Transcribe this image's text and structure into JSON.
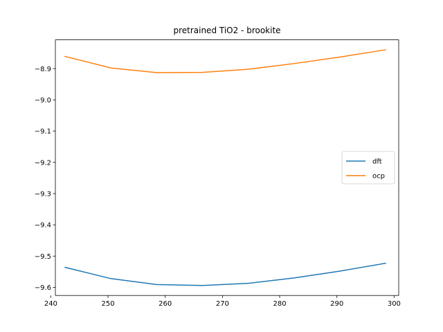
{
  "chart_data": {
    "type": "line",
    "title": "pretrained TiO2 - brookite",
    "xlabel": "",
    "ylabel": "",
    "x": [
      242.5,
      250.5,
      258.5,
      266.5,
      274.5,
      282.5,
      290.5,
      298.5
    ],
    "series": [
      {
        "name": "dft",
        "color": "#1f77b4",
        "values": [
          -9.536,
          -9.572,
          -9.591,
          -9.594,
          -9.587,
          -9.57,
          -9.548,
          -9.523
        ]
      },
      {
        "name": "ocp",
        "color": "#ff7f0e",
        "values": [
          -8.861,
          -8.898,
          -8.913,
          -8.912,
          -8.902,
          -8.884,
          -8.863,
          -8.84
        ]
      }
    ],
    "xlim": [
      240.8,
      300.8
    ],
    "ylim": [
      -9.626,
      -8.808
    ],
    "xticks": [
      240,
      250,
      260,
      270,
      280,
      290,
      300
    ],
    "yticks": [
      -9.6,
      -9.5,
      -9.4,
      -9.3,
      -9.2,
      -9.1,
      -9.0,
      -8.9
    ],
    "ytick_labels": [
      "−9.6",
      "−9.5",
      "−9.4",
      "−9.3",
      "−9.2",
      "−9.1",
      "−9.0",
      "−8.9"
    ],
    "grid": false,
    "legend_position": "center-right"
  }
}
